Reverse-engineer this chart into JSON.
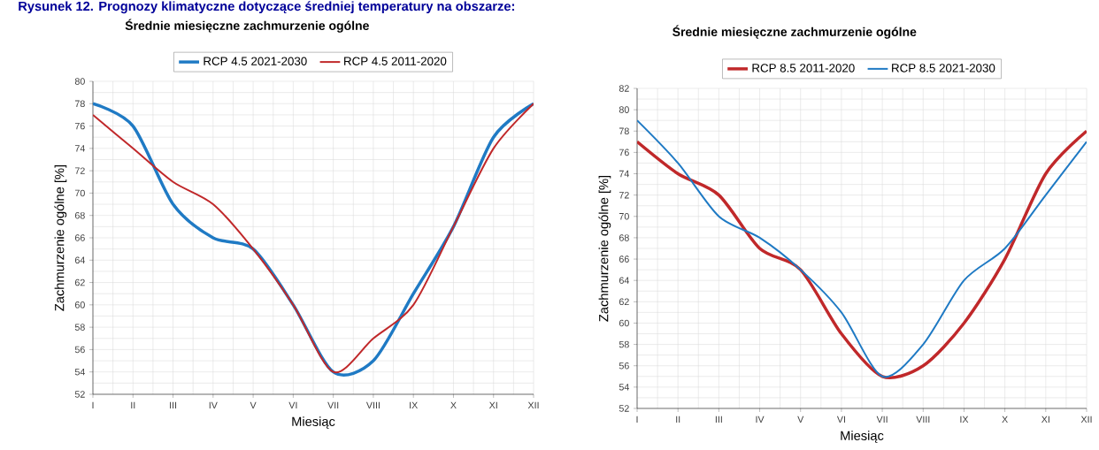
{
  "chart_data": [
    {
      "type": "line",
      "title": "Średnie miesięczne zachmurzenie ogólne",
      "xlabel": "Miesiąc",
      "ylabel": "Zachmurzenie ogólne [%]",
      "annotations": [
        "Rysunek 12. Prognozy klimatyczne dotyczące średniej temperatury na obszarze:"
      ],
      "categories": [
        "I",
        "II",
        "III",
        "IV",
        "V",
        "VI",
        "VII",
        "VIII",
        "IX",
        "X",
        "XI",
        "XII"
      ],
      "series": [
        {
          "name": "RCP 4.5 2021-2030",
          "color": "#1f7ac4",
          "values": [
            78,
            76,
            69,
            66,
            65,
            60,
            54,
            55,
            61,
            67,
            75,
            78
          ]
        },
        {
          "name": "RCP 4.5 2011-2020",
          "color": "#c0282a",
          "values": [
            77,
            74,
            71,
            69,
            65,
            60,
            54,
            57,
            60,
            67,
            74,
            78
          ]
        }
      ],
      "ylim": [
        52,
        80
      ],
      "yticks": [
        52,
        54,
        56,
        58,
        60,
        62,
        64,
        66,
        68,
        70,
        72,
        74,
        76,
        78,
        80
      ],
      "grid": true,
      "legend": "top",
      "marker": "none",
      "line_style": "solid"
    },
    {
      "type": "line",
      "title": "Średnie miesięczne zachmurzenie ogólne",
      "xlabel": "Miesiąc",
      "ylabel": "Zachmurzenie ogólne [%]",
      "categories": [
        "I",
        "II",
        "III",
        "IV",
        "V",
        "VI",
        "VII",
        "VIII",
        "IX",
        "X",
        "XI",
        "XII"
      ],
      "series": [
        {
          "name": "RCP 8.5 2011-2020",
          "color": "#c0282a",
          "values": [
            77,
            74,
            72,
            67,
            65,
            59,
            55,
            56,
            60,
            66,
            74,
            78
          ]
        },
        {
          "name": "RCP 8.5 2021-2030",
          "color": "#1f7ac4",
          "values": [
            79,
            75,
            70,
            68,
            65,
            61,
            55,
            58,
            64,
            67,
            72,
            77
          ]
        }
      ],
      "ylim": [
        52,
        82
      ],
      "yticks": [
        52,
        54,
        56,
        58,
        60,
        62,
        64,
        66,
        68,
        70,
        72,
        74,
        76,
        78,
        80,
        82
      ],
      "grid": true,
      "legend": "top",
      "marker": "none",
      "line_style": "solid"
    }
  ]
}
